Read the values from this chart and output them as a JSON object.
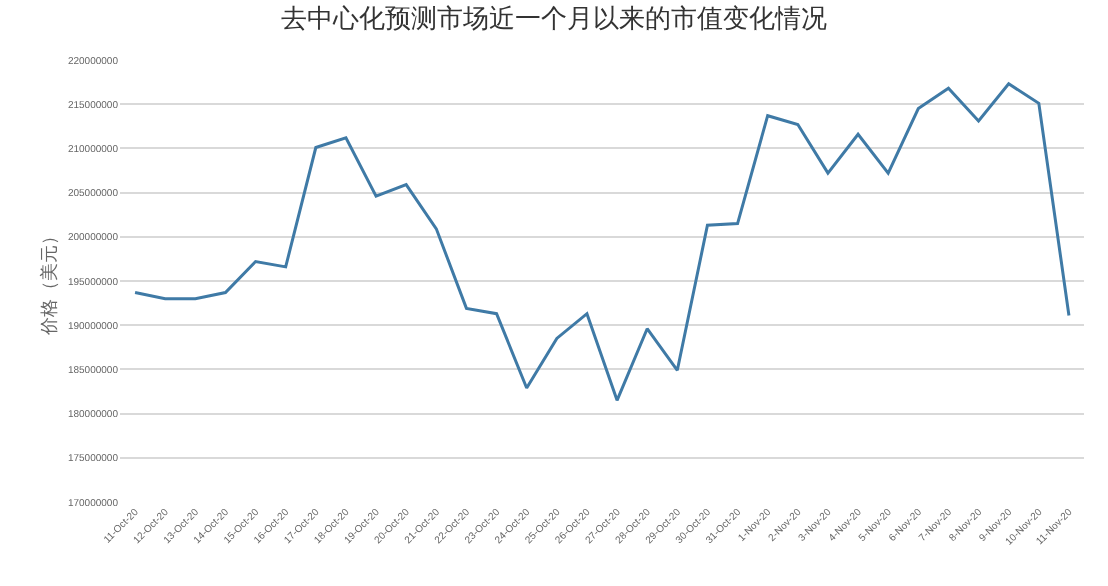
{
  "chart_data": {
    "type": "line",
    "title": "去中心化预测市场近一个月以来的市值变化情况",
    "ylabel": "价格（美元）",
    "categories": [
      "11-Oct-20",
      "12-Oct-20",
      "13-Oct-20",
      "14-Oct-20",
      "15-Oct-20",
      "16-Oct-20",
      "17-Oct-20",
      "18-Oct-20",
      "19-Oct-20",
      "20-Oct-20",
      "21-Oct-20",
      "22-Oct-20",
      "23-Oct-20",
      "24-Oct-20",
      "25-Oct-20",
      "26-Oct-20",
      "27-Oct-20",
      "28-Oct-20",
      "29-Oct-20",
      "30-Oct-20",
      "31-Oct-20",
      "1-Nov-20",
      "2-Nov-20",
      "3-Nov-20",
      "4-Nov-20",
      "5-Nov-20",
      "6-Nov-20",
      "7-Nov-20",
      "8-Nov-20",
      "9-Nov-20",
      "10-Nov-20",
      "11-Nov-20"
    ],
    "series": [
      {
        "color": "#3f7aa6",
        "values": [
          193700000,
          193000000,
          193000000,
          193700000,
          197200000,
          196600000,
          210100000,
          211200000,
          204600000,
          205900000,
          200900000,
          191900000,
          191300000,
          182900000,
          188500000,
          191300000,
          181500000,
          189600000,
          184900000,
          201300000,
          201500000,
          213700000,
          212700000,
          207200000,
          211600000,
          207200000,
          214500000,
          216800000,
          213100000,
          217300000,
          215100000,
          191100000
        ]
      }
    ],
    "ylim": [
      170000000,
      220000000
    ],
    "yticks": [
      170000000,
      175000000,
      180000000,
      185000000,
      190000000,
      195000000,
      200000000,
      205000000,
      210000000,
      215000000,
      220000000
    ],
    "grid": "y",
    "legend": false,
    "marker": "none",
    "line_style": "solid"
  }
}
